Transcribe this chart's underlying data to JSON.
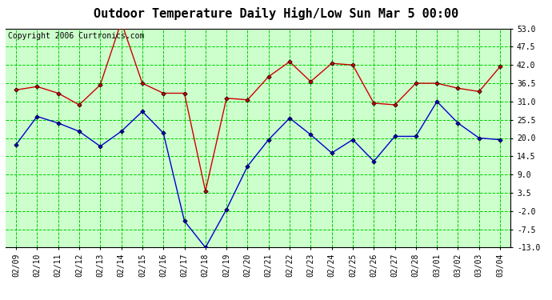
{
  "title": "Outdoor Temperature Daily High/Low Sun Mar 5 00:00",
  "copyright": "Copyright 2006 Curtronics.com",
  "dates": [
    "02/09",
    "02/10",
    "02/11",
    "02/12",
    "02/13",
    "02/14",
    "02/15",
    "02/16",
    "02/17",
    "02/18",
    "02/19",
    "02/20",
    "02/21",
    "02/22",
    "02/23",
    "02/24",
    "02/25",
    "02/26",
    "02/27",
    "02/28",
    "03/01",
    "03/02",
    "03/03",
    "03/04"
  ],
  "high_temps": [
    34.5,
    35.5,
    33.5,
    30.0,
    36.0,
    55.0,
    36.5,
    33.5,
    33.5,
    4.0,
    32.0,
    31.5,
    38.5,
    43.0,
    37.0,
    42.5,
    42.0,
    30.5,
    30.0,
    36.5,
    36.5,
    35.0,
    34.0,
    41.5
  ],
  "low_temps": [
    18.0,
    26.5,
    24.5,
    22.0,
    17.5,
    22.0,
    28.0,
    21.5,
    -5.0,
    -13.0,
    -1.5,
    11.5,
    19.5,
    26.0,
    21.0,
    15.5,
    19.5,
    13.0,
    20.5,
    20.5,
    31.0,
    24.5,
    20.0,
    19.5
  ],
  "high_color": "#cc0000",
  "low_color": "#0000cc",
  "marker_color": "#000000",
  "grid_color": "#00cc00",
  "bg_color": "#ccffcc",
  "title_color": "#000000",
  "title_fontsize": 11,
  "copyright_fontsize": 7,
  "tick_fontsize": 7,
  "ymin": -13.0,
  "ymax": 53.0,
  "yticks": [
    -13.0,
    -7.5,
    -2.0,
    3.5,
    9.0,
    14.5,
    20.0,
    25.5,
    31.0,
    36.5,
    42.0,
    47.5,
    53.0
  ]
}
